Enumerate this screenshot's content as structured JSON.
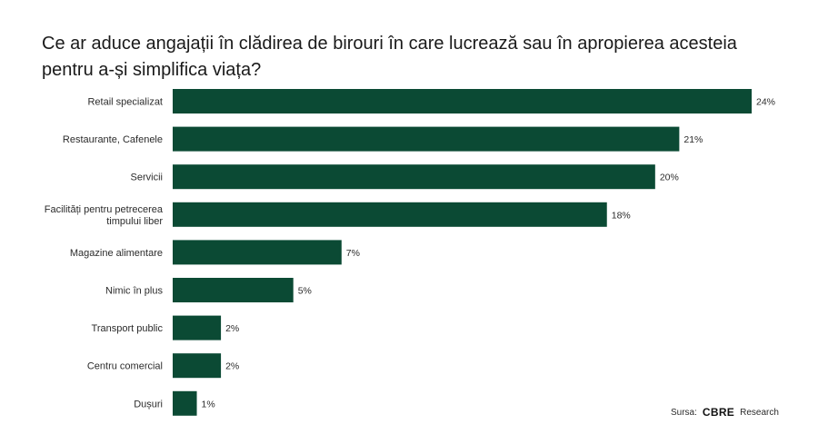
{
  "chart_data": {
    "type": "bar",
    "orientation": "horizontal",
    "title": "Ce ar aduce angajații în clădirea de birouri în care lucrează sau în apropierea acesteia pentru a-și simplifica viața?",
    "categories": [
      [
        "Retail specializat"
      ],
      [
        "Restaurante, Cafenele"
      ],
      [
        "Servicii"
      ],
      [
        "Facilități pentru petrecerea",
        "timpului liber"
      ],
      [
        "Magazine alimentare"
      ],
      [
        "Nimic în plus"
      ],
      [
        "Transport public"
      ],
      [
        "Centru comercial"
      ],
      [
        "Dușuri"
      ]
    ],
    "values": [
      24,
      21,
      20,
      18,
      7,
      5,
      2,
      2,
      1
    ],
    "value_labels": [
      "24%",
      "21%",
      "20%",
      "18%",
      "7%",
      "5%",
      "2%",
      "2%",
      "1%"
    ],
    "xlim": [
      0,
      24
    ],
    "grid": false,
    "colors": {
      "bar": "#0b4a34"
    }
  },
  "source": {
    "prefix": "Sursa:",
    "logo": "CBRE",
    "suffix": "Research"
  }
}
